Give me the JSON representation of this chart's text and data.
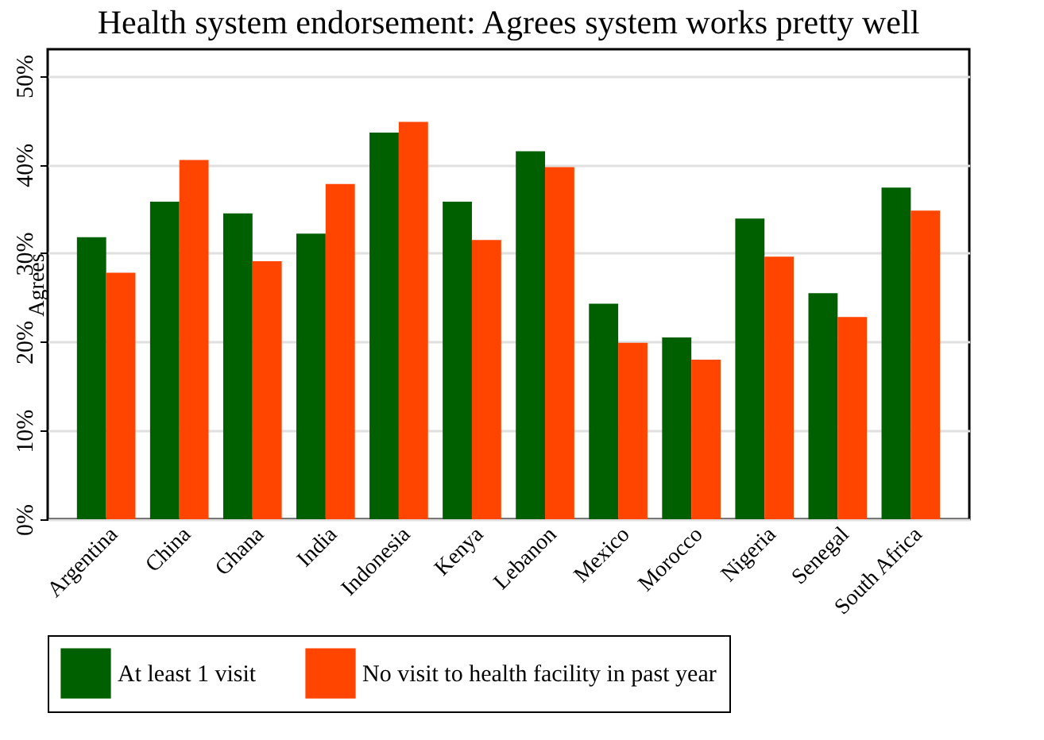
{
  "chart_data": {
    "type": "bar",
    "title": "Health system endorsement: Agrees system works pretty well",
    "ylabel": "Agrees",
    "categories": [
      "Argentina",
      "China",
      "Ghana",
      "India",
      "Indonesia",
      "Kenya",
      "Lebanon",
      "Mexico",
      "Morocco",
      "Nigeria",
      "Senegal",
      "South Africa"
    ],
    "series": [
      {
        "name": "At least 1 visit",
        "color": "#006000",
        "values": [
          31.8,
          35.8,
          34.5,
          32.2,
          43.6,
          35.8,
          41.5,
          24.3,
          20.5,
          33.9,
          25.5,
          37.4
        ]
      },
      {
        "name": "No visit to health facility in past year",
        "color": "#ff4500",
        "values": [
          27.8,
          40.5,
          29.1,
          37.8,
          44.8,
          31.5,
          39.7,
          19.9,
          18.0,
          29.6,
          22.8,
          34.8
        ]
      }
    ],
    "ylim": [
      0,
      53
    ],
    "yticks": [
      {
        "value": 0,
        "label": "0%"
      },
      {
        "value": 10,
        "label": "10%"
      },
      {
        "value": 20,
        "label": "20%"
      },
      {
        "value": 30,
        "label": "30%"
      },
      {
        "value": 40,
        "label": "40%"
      },
      {
        "value": 50,
        "label": "50%"
      }
    ],
    "grid": "y",
    "legend": "bottom"
  }
}
